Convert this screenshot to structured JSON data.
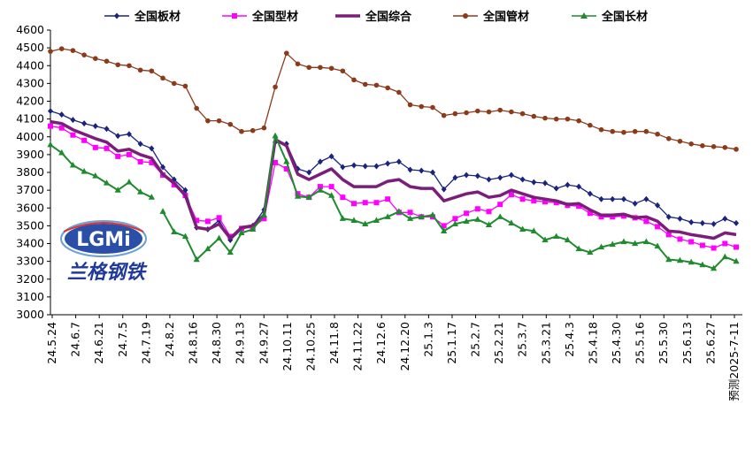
{
  "chart_data": {
    "type": "line",
    "ylim": [
      3000,
      4600
    ],
    "yticks": [
      3000,
      3100,
      3200,
      3300,
      3400,
      3500,
      3600,
      3700,
      3800,
      3900,
      4000,
      4100,
      4200,
      4300,
      4400,
      4500,
      4600
    ],
    "x_tick_labels": [
      "24.5.24",
      "24.6.7",
      "24.6.21",
      "24.7.5",
      "24.7.19",
      "24.8.2",
      "24.8.16",
      "24.8.30",
      "24.9.13",
      "24.9.27",
      "24.10.11",
      "24.10.25",
      "24.11.8",
      "24.11.22",
      "24.12.6",
      "24.12.20",
      "25.1.3",
      "25.1.17",
      "25.2.7",
      "25.2.21",
      "25.3.7",
      "25.3.21",
      "25.4.3",
      "25.4.18",
      "25.4.30",
      "25.5.16",
      "25.5.30",
      "25.6.13",
      "25.6.27",
      "预测2025-7-11"
    ],
    "series": [
      {
        "name": "全国板材",
        "color": "#1a237e",
        "marker": "diamond",
        "width": 1.3,
        "values": [
          4145,
          4125,
          4095,
          4075,
          4060,
          4045,
          4005,
          4015,
          3960,
          3935,
          3830,
          3760,
          3700,
          3490,
          3480,
          3530,
          3420,
          3480,
          3500,
          3590,
          3970,
          3960,
          3820,
          3800,
          3860,
          3890,
          3830,
          3840,
          3835,
          3835,
          3850,
          3860,
          3815,
          3810,
          3800,
          3705,
          3770,
          3785,
          3780,
          3760,
          3770,
          3785,
          3760,
          3745,
          3740,
          3710,
          3730,
          3720,
          3680,
          3650,
          3650,
          3650,
          3625,
          3650,
          3615,
          3550,
          3540,
          3520,
          3515,
          3510,
          3540,
          3515
        ],
        "gaps": []
      },
      {
        "name": "全国型材",
        "color": "#ff00ff",
        "marker": "square",
        "width": 1.3,
        "values": [
          4060,
          4050,
          4010,
          3980,
          3940,
          3935,
          3890,
          3900,
          3860,
          3855,
          3785,
          3730,
          3670,
          3530,
          3525,
          3545,
          3440,
          3485,
          3490,
          3540,
          3855,
          3820,
          3680,
          3660,
          3720,
          3720,
          3660,
          3625,
          3630,
          3630,
          3650,
          3575,
          3575,
          3550,
          3550,
          3500,
          3540,
          3570,
          3595,
          3580,
          3620,
          3675,
          3650,
          3640,
          3635,
          3630,
          3615,
          3610,
          3570,
          3550,
          3550,
          3555,
          3545,
          3525,
          3495,
          3450,
          3425,
          3410,
          3390,
          3375,
          3400,
          3380
        ],
        "gaps": []
      },
      {
        "name": "全国综合",
        "color": "#7b1e7a",
        "marker": "none",
        "width": 3.5,
        "values": [
          4085,
          4075,
          4040,
          4015,
          3990,
          3970,
          3920,
          3930,
          3900,
          3880,
          3790,
          3740,
          3670,
          3490,
          3480,
          3510,
          3430,
          3490,
          3500,
          3560,
          3985,
          3950,
          3790,
          3760,
          3790,
          3820,
          3760,
          3720,
          3720,
          3720,
          3750,
          3760,
          3720,
          3710,
          3710,
          3640,
          3660,
          3680,
          3690,
          3660,
          3670,
          3700,
          3680,
          3660,
          3650,
          3640,
          3620,
          3625,
          3590,
          3560,
          3560,
          3565,
          3545,
          3550,
          3525,
          3470,
          3465,
          3450,
          3440,
          3430,
          3460,
          3450
        ],
        "gaps": []
      },
      {
        "name": "全国管材",
        "color": "#8b3a1a",
        "marker": "circle",
        "width": 1.3,
        "values": [
          4480,
          4495,
          4485,
          4460,
          4440,
          4425,
          4405,
          4400,
          4375,
          4370,
          4330,
          4300,
          4285,
          4160,
          4090,
          4090,
          4070,
          4030,
          4035,
          4050,
          4280,
          4470,
          4410,
          4390,
          4390,
          4385,
          4370,
          4320,
          4295,
          4290,
          4275,
          4250,
          4180,
          4170,
          4165,
          4120,
          4130,
          4135,
          4145,
          4140,
          4150,
          4140,
          4130,
          4115,
          4105,
          4100,
          4100,
          4090,
          4065,
          4040,
          4030,
          4025,
          4030,
          4030,
          4015,
          3990,
          3975,
          3960,
          3950,
          3945,
          3940,
          3930
        ],
        "gaps": []
      },
      {
        "name": "全国长材",
        "color": "#1f8a2e",
        "marker": "triangle",
        "width": 2,
        "values": [
          3955,
          3910,
          3840,
          3805,
          3780,
          3740,
          3700,
          3745,
          3690,
          3660,
          3580,
          3465,
          3440,
          3310,
          3370,
          3430,
          3350,
          3460,
          3480,
          3560,
          4005,
          3860,
          3665,
          3660,
          3700,
          3670,
          3540,
          3530,
          3510,
          3530,
          3550,
          3580,
          3540,
          3550,
          3560,
          3470,
          3510,
          3525,
          3535,
          3505,
          3550,
          3515,
          3480,
          3470,
          3420,
          3440,
          3420,
          3370,
          3350,
          3380,
          3395,
          3410,
          3400,
          3410,
          3385,
          3310,
          3305,
          3295,
          3280,
          3260,
          3325,
          3300
        ],
        "gaps": [
          [
            9,
            10
          ]
        ]
      }
    ]
  },
  "logo": {
    "en": "LGMi",
    "cn": "兰格钢铁"
  }
}
